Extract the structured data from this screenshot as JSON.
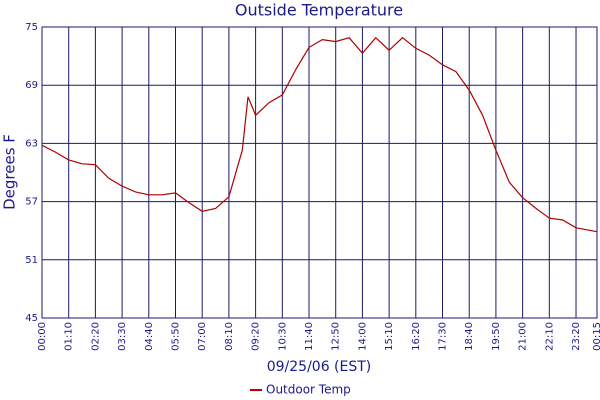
{
  "chart_data": {
    "type": "line",
    "title": "Outside Temperature",
    "y_label": "Degrees F",
    "x_label": "09/25/06 (EST)",
    "x": [
      0,
      35,
      70,
      105,
      140,
      175,
      210,
      245,
      280,
      315,
      350,
      385,
      420,
      455,
      490,
      525,
      540,
      560,
      595,
      630,
      665,
      700,
      735,
      770,
      805,
      840,
      875,
      910,
      945,
      980,
      1015,
      1050,
      1085,
      1120,
      1155,
      1190,
      1225,
      1260,
      1295,
      1330,
      1365,
      1400,
      1455
    ],
    "series": [
      {
        "name": "Outdoor Temp",
        "color": "#b00000",
        "values": [
          62.8,
          62.1,
          61.3,
          60.9,
          60.8,
          59.4,
          58.6,
          58.0,
          57.7,
          57.7,
          57.9,
          56.9,
          56.0,
          56.3,
          57.5,
          62.3,
          67.8,
          65.9,
          67.2,
          68.0,
          70.6,
          72.9,
          73.7,
          73.5,
          73.9,
          72.3,
          73.9,
          72.6,
          73.9,
          72.8,
          72.1,
          71.1,
          70.4,
          68.5,
          65.9,
          62.3,
          59.0,
          57.4,
          56.3,
          55.3,
          55.1,
          54.3,
          53.9
        ]
      }
    ],
    "xlim": [
      0,
      1455
    ],
    "xticks": [
      {
        "value": 0,
        "label": "00:00"
      },
      {
        "value": 70,
        "label": "01:10"
      },
      {
        "value": 140,
        "label": "02:20"
      },
      {
        "value": 210,
        "label": "03:30"
      },
      {
        "value": 280,
        "label": "04:40"
      },
      {
        "value": 350,
        "label": "05:50"
      },
      {
        "value": 420,
        "label": "07:00"
      },
      {
        "value": 490,
        "label": "08:10"
      },
      {
        "value": 560,
        "label": "09:20"
      },
      {
        "value": 630,
        "label": "10:30"
      },
      {
        "value": 700,
        "label": "11:40"
      },
      {
        "value": 770,
        "label": "12:50"
      },
      {
        "value": 840,
        "label": "14:00"
      },
      {
        "value": 910,
        "label": "15:10"
      },
      {
        "value": 980,
        "label": "16:20"
      },
      {
        "value": 1050,
        "label": "17:30"
      },
      {
        "value": 1120,
        "label": "18:40"
      },
      {
        "value": 1190,
        "label": "19:50"
      },
      {
        "value": 1260,
        "label": "21:00"
      },
      {
        "value": 1330,
        "label": "22:10"
      },
      {
        "value": 1400,
        "label": "23:20"
      },
      {
        "value": 1455,
        "label": "00:15"
      }
    ],
    "ylim": [
      45,
      75
    ],
    "yticks": [
      45,
      51,
      57,
      63,
      69,
      75
    ],
    "grid": true
  }
}
